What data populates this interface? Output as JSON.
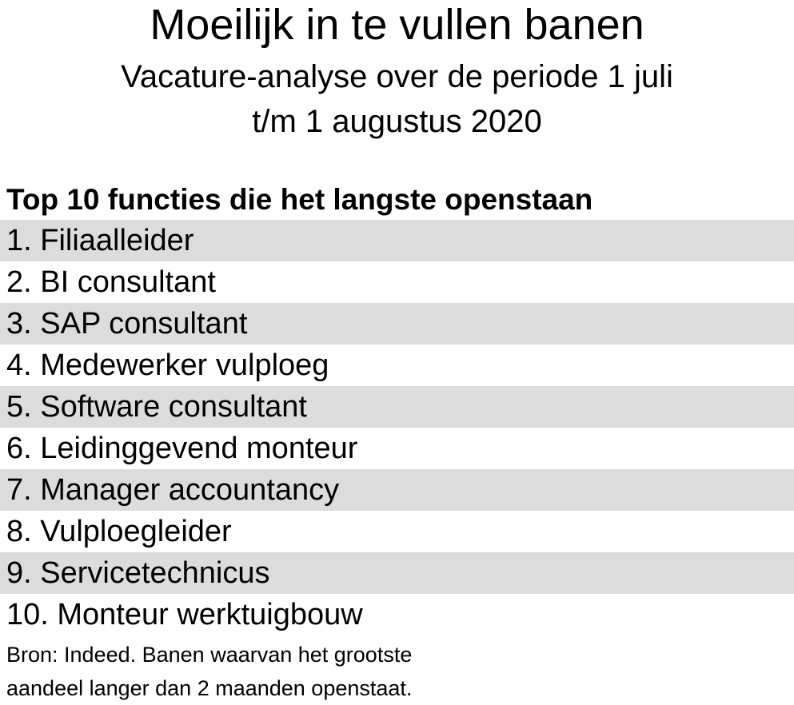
{
  "header": {
    "title": "Moeilijk in te vullen banen",
    "subtitle_line1": "Vacature-analyse over de periode 1 juli",
    "subtitle_line2": "t/m 1 augustus 2020"
  },
  "list": {
    "heading": "Top 10 functies die het langste openstaan",
    "items": [
      "1. Filiaalleider",
      "2. BI consultant",
      "3. SAP consultant",
      "4. Medewerker vulploeg",
      "5. Software consultant",
      "6. Leidinggevend monteur",
      "7. Manager accountancy",
      "8. Vulploegleider",
      "9. Servicetechnicus",
      "10. Monteur werktuigbouw"
    ],
    "row_shade_color": "#dcdcdc"
  },
  "footer": {
    "source_line1": "Bron: Indeed. Banen waarvan het grootste",
    "source_line2": "aandeel langer dan 2 maanden openstaat."
  }
}
